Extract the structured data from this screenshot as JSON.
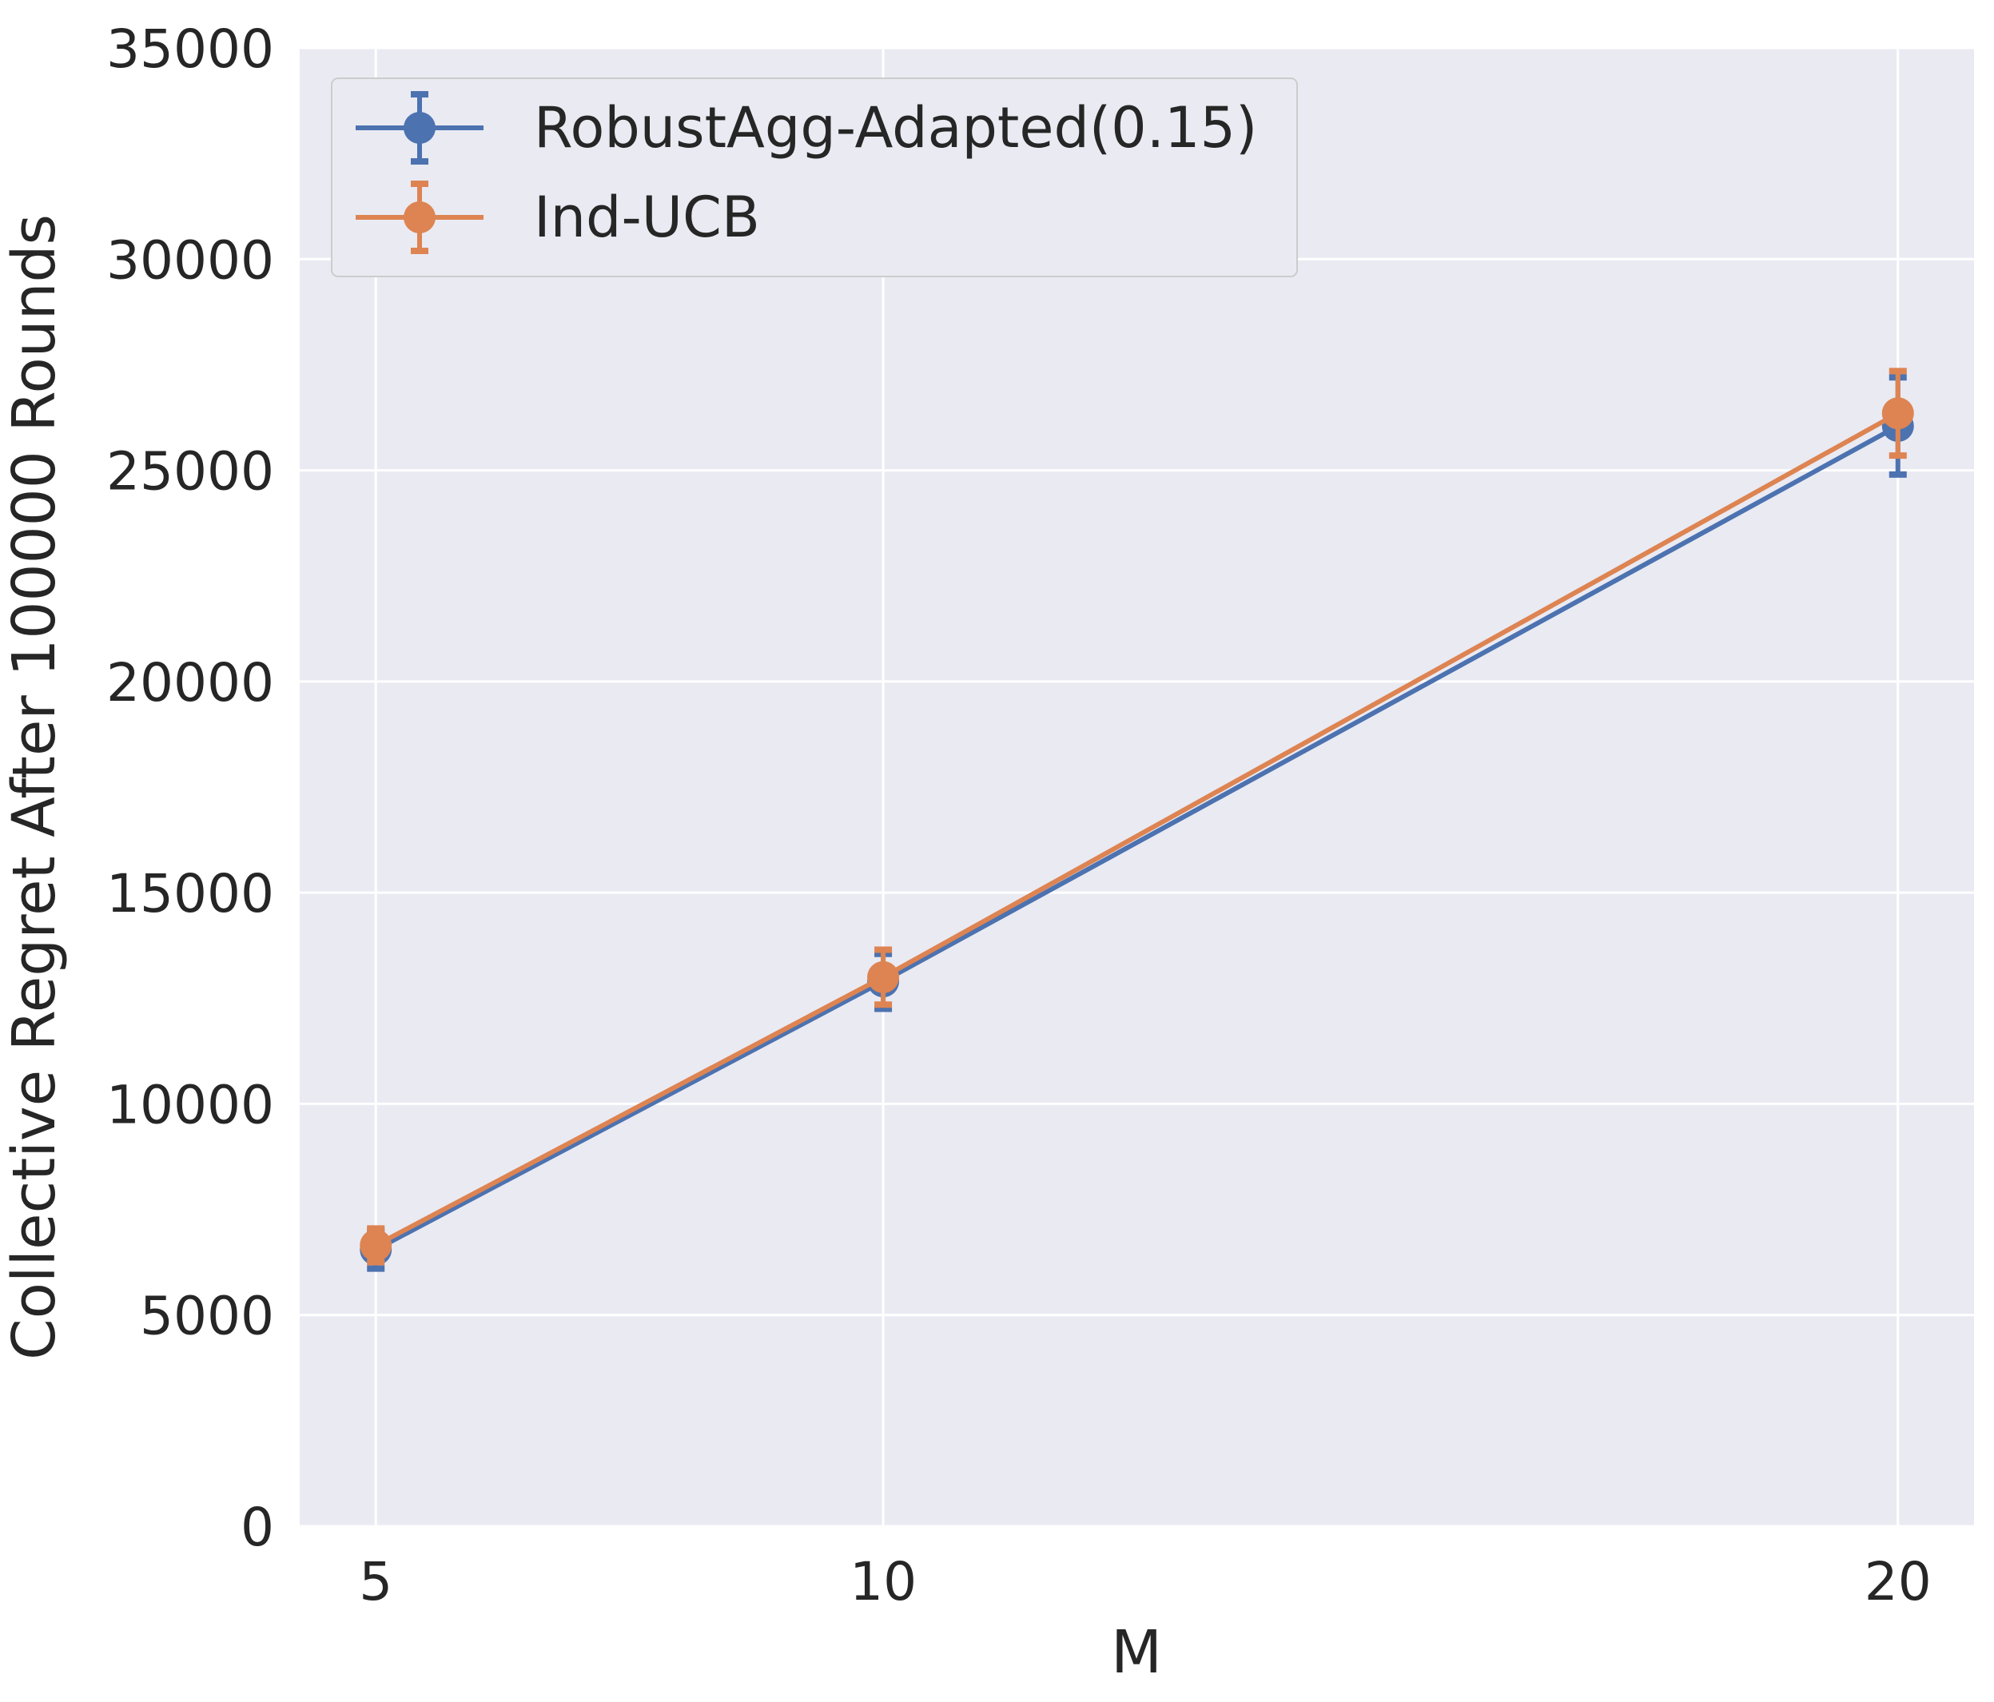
{
  "chart_data": {
    "type": "line",
    "title": "",
    "xlabel": "M",
    "ylabel": "Collective Regret After 100000 Rounds",
    "x": [
      5,
      10,
      20
    ],
    "xticks": [
      "5",
      "10",
      "20"
    ],
    "xlim": [
      4.25,
      20.75
    ],
    "ylim": [
      0,
      35000
    ],
    "yticks": [
      "0",
      "5000",
      "10000",
      "15000",
      "20000",
      "25000",
      "30000",
      "35000"
    ],
    "grid": true,
    "legend_position": "top-left",
    "series": [
      {
        "name": "RobustAgg-Adapted(0.15)",
        "color": "#4c72b0",
        "values": [
          6550,
          12900,
          26050
        ],
        "errors": [
          450,
          650,
          1150
        ]
      },
      {
        "name": "Ind-UCB",
        "color": "#dd8452",
        "values": [
          6650,
          13000,
          26350
        ],
        "errors": [
          400,
          650,
          1000
        ]
      }
    ]
  },
  "colors": {
    "plot_background": "#eaeaf2",
    "grid": "#ffffff",
    "text": "#262626"
  }
}
